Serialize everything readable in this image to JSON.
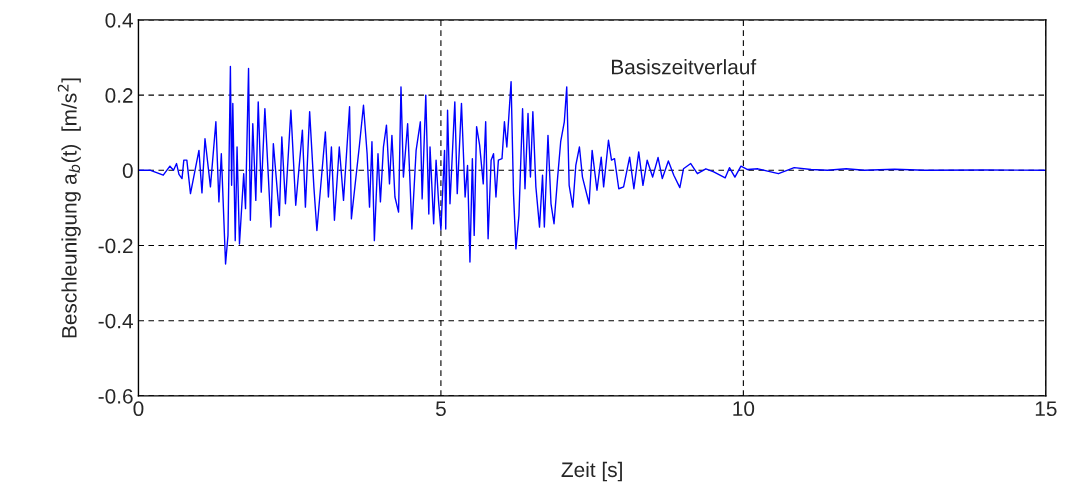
{
  "chart_data": {
    "type": "line",
    "xlabel": "Zeit [s]",
    "ylabel": "Beschleunigung a$_{b}$(t)  [m/s$^{2}$]",
    "annotations": [
      "Basiszeitverlauf"
    ],
    "xlim": [
      0,
      15
    ],
    "xticks": [
      0,
      5,
      10,
      15
    ],
    "ylim": [
      -0.6,
      0.4
    ],
    "yticks": [
      -0.6,
      -0.4,
      -0.2,
      0,
      0.2,
      0.4
    ],
    "grid": true,
    "legend": false,
    "marker": "none",
    "line_style": "solid",
    "series": [
      {
        "color": "#0000ff",
        "x": [
          0,
          0.2,
          0.41,
          0.52,
          0.58,
          0.63,
          0.67,
          0.72,
          0.75,
          0.8,
          0.86,
          1.0,
          1.05,
          1.1,
          1.19,
          1.28,
          1.33,
          1.37,
          1.44,
          1.48,
          1.52,
          1.54,
          1.56,
          1.6,
          1.63,
          1.67,
          1.74,
          1.77,
          1.82,
          1.85,
          1.89,
          1.94,
          1.98,
          2.03,
          2.09,
          2.19,
          2.23,
          2.33,
          2.37,
          2.43,
          2.52,
          2.6,
          2.71,
          2.76,
          2.83,
          2.9,
          2.95,
          3.09,
          3.14,
          3.19,
          3.24,
          3.32,
          3.39,
          3.49,
          3.52,
          3.65,
          3.72,
          3.78,
          3.82,
          3.86,
          3.9,
          3.96,
          4.0,
          4.05,
          4.1,
          4.15,
          4.19,
          4.24,
          4.3,
          4.34,
          4.38,
          4.45,
          4.52,
          4.59,
          4.66,
          4.69,
          4.75,
          4.8,
          4.82,
          4.88,
          4.92,
          4.96,
          5.0,
          5.06,
          5.08,
          5.11,
          5.15,
          5.23,
          5.27,
          5.34,
          5.4,
          5.44,
          5.48,
          5.52,
          5.55,
          5.59,
          5.64,
          5.7,
          5.74,
          5.78,
          5.83,
          5.87,
          5.91,
          5.95,
          6.01,
          6.05,
          6.09,
          6.16,
          6.2,
          6.24,
          6.29,
          6.35,
          6.39,
          6.44,
          6.48,
          6.52,
          6.57,
          6.63,
          6.68,
          6.71,
          6.77,
          6.82,
          6.87,
          6.93,
          6.98,
          7.04,
          7.08,
          7.12,
          7.18,
          7.23,
          7.29,
          7.34,
          7.45,
          7.5,
          7.58,
          7.65,
          7.69,
          7.77,
          7.82,
          7.87,
          7.94,
          8.02,
          8.12,
          8.19,
          8.27,
          8.34,
          8.41,
          8.5,
          8.59,
          8.66,
          8.76,
          8.85,
          8.95,
          9.01,
          9.13,
          9.24,
          9.38,
          9.51,
          9.7,
          9.77,
          9.86,
          9.96,
          10.07,
          10.24,
          10.4,
          10.58,
          10.84,
          11.12,
          11.39,
          11.7,
          12.0,
          12.5,
          13.0,
          14.0,
          15.0
        ],
        "values": [
          0,
          0,
          -0.013,
          0.011,
          0,
          0.018,
          -0.011,
          -0.022,
          0.027,
          0.027,
          -0.062,
          0.053,
          -0.06,
          0.084,
          -0.044,
          0.129,
          -0.084,
          0.044,
          -0.249,
          -0.173,
          0.276,
          -0.04,
          0.178,
          -0.187,
          0.062,
          -0.196,
          -0.009,
          -0.102,
          0.271,
          -0.133,
          0.124,
          -0.08,
          0.182,
          -0.058,
          0.164,
          -0.151,
          0.071,
          -0.12,
          0.089,
          -0.089,
          0.16,
          -0.093,
          0.107,
          -0.098,
          0.156,
          -0.044,
          -0.16,
          0.102,
          -0.071,
          0.062,
          -0.133,
          0.062,
          -0.08,
          0.169,
          -0.129,
          0.062,
          0.173,
          0.044,
          -0.098,
          0.076,
          -0.187,
          0.044,
          -0.084,
          0.062,
          0.12,
          -0.036,
          0.093,
          -0.071,
          -0.111,
          0.222,
          -0.018,
          0.124,
          -0.156,
          0.053,
          0.129,
          -0.076,
          0.2,
          -0.116,
          0.062,
          -0.142,
          0.027,
          -0.08,
          -0.158,
          0.053,
          -0.156,
          0.16,
          -0.089,
          0.182,
          -0.062,
          0.178,
          -0.071,
          0.013,
          -0.244,
          0.031,
          -0.173,
          0.116,
          0.067,
          -0.036,
          0.129,
          -0.182,
          0.027,
          0.044,
          -0.071,
          0.027,
          0.031,
          0.129,
          0.062,
          0.236,
          -0.062,
          -0.209,
          -0.12,
          0.164,
          -0.049,
          0.151,
          -0.018,
          0.156,
          -0.044,
          -0.151,
          -0.013,
          -0.151,
          0.093,
          -0.089,
          -0.142,
          -0.018,
          0.076,
          0.129,
          0.222,
          -0.04,
          -0.098,
          0.013,
          0.062,
          -0.018,
          -0.089,
          0.053,
          -0.053,
          0.035,
          -0.044,
          0.08,
          0.027,
          0.031,
          -0.049,
          -0.044,
          0.035,
          -0.049,
          0.049,
          -0.04,
          0.027,
          -0.018,
          0.034,
          -0.022,
          0.025,
          -0.013,
          -0.046,
          0.004,
          0.018,
          -0.009,
          0.004,
          -0.004,
          -0.02,
          0.007,
          -0.018,
          0.011,
          0.002,
          0.004,
          -0.002,
          -0.009,
          0.007,
          0.002,
          0,
          0.004,
          0,
          0.003,
          0,
          0.001,
          0
        ]
      }
    ]
  }
}
